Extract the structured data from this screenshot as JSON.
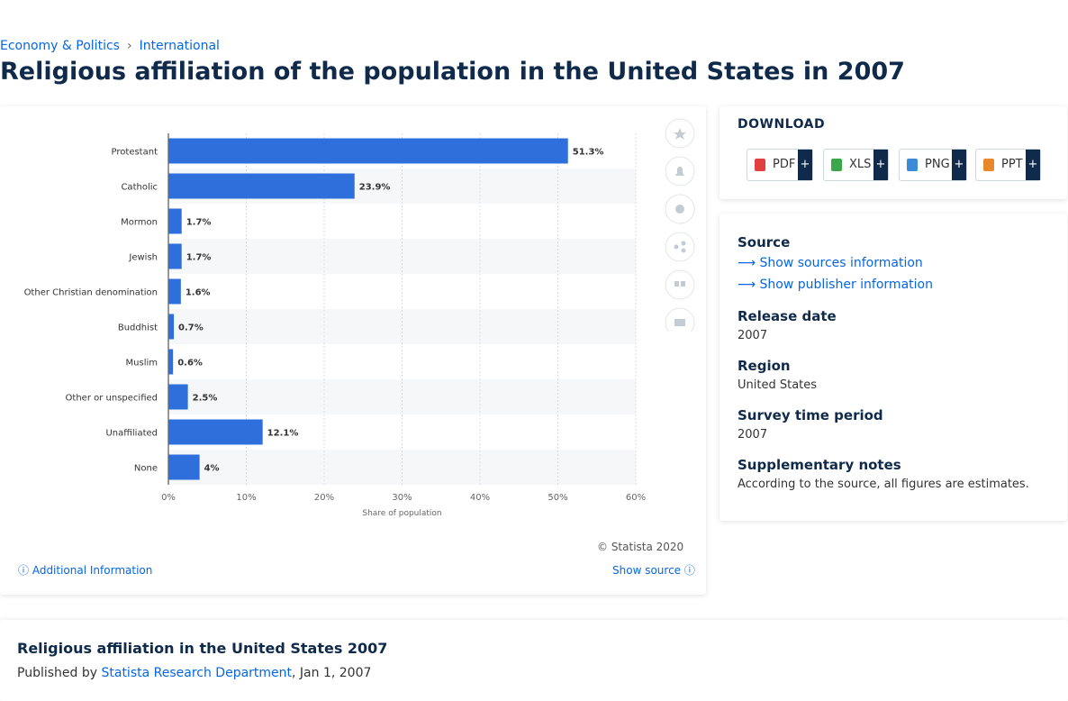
{
  "breadcrumb": [
    "Economy & Politics",
    "International"
  ],
  "title": "Religious affiliation of the population in the United States in 2007",
  "chart_data": {
    "type": "bar",
    "orientation": "horizontal",
    "categories": [
      "Protestant",
      "Catholic",
      "Mormon",
      "Jewish",
      "Other Christian denomination",
      "Buddhist",
      "Muslim",
      "Other or unspecified",
      "Unaffiliated",
      "None"
    ],
    "values": [
      51.3,
      23.9,
      1.7,
      1.7,
      1.6,
      0.7,
      0.6,
      2.5,
      12.1,
      4
    ],
    "value_labels": [
      "51.3%",
      "23.9%",
      "1.7%",
      "1.7%",
      "1.6%",
      "0.7%",
      "0.6%",
      "2.5%",
      "12.1%",
      "4%"
    ],
    "color": "#2f6fdc",
    "xlim": [
      0,
      60
    ],
    "xticks": [
      {
        "value": 0,
        "label": "0%"
      },
      {
        "value": 10,
        "label": "10%"
      },
      {
        "value": 20,
        "label": "20%"
      },
      {
        "value": 30,
        "label": "30%"
      },
      {
        "value": 40,
        "label": "40%"
      },
      {
        "value": 50,
        "label": "50%"
      },
      {
        "value": 60,
        "label": "60%"
      }
    ],
    "x_label": "Share of population",
    "grid": true
  },
  "chart_footer": {
    "copyright": "© Statista 2020",
    "additional": "Additional Information",
    "show_source": "Show source"
  },
  "download": {
    "heading": "DOWNLOAD",
    "formats": [
      "PDF",
      "XLS",
      "PNG",
      "PPT"
    ],
    "plus": "+"
  },
  "details": {
    "source_heading": "Source",
    "sources_link": "Show sources information",
    "publisher_link": "Show publisher information",
    "release_heading": "Release date",
    "release": "2007",
    "region_heading": "Region",
    "region": "United States",
    "survey_heading": "Survey time period",
    "survey": "2007",
    "notes_heading": "Supplementary notes",
    "notes": "According to the source, all figures are estimates."
  },
  "article": {
    "title": "Religious affiliation in the United States 2007",
    "published_by": "Published by",
    "author": "Statista Research Department",
    "date": ", Jan 1, 2007"
  }
}
